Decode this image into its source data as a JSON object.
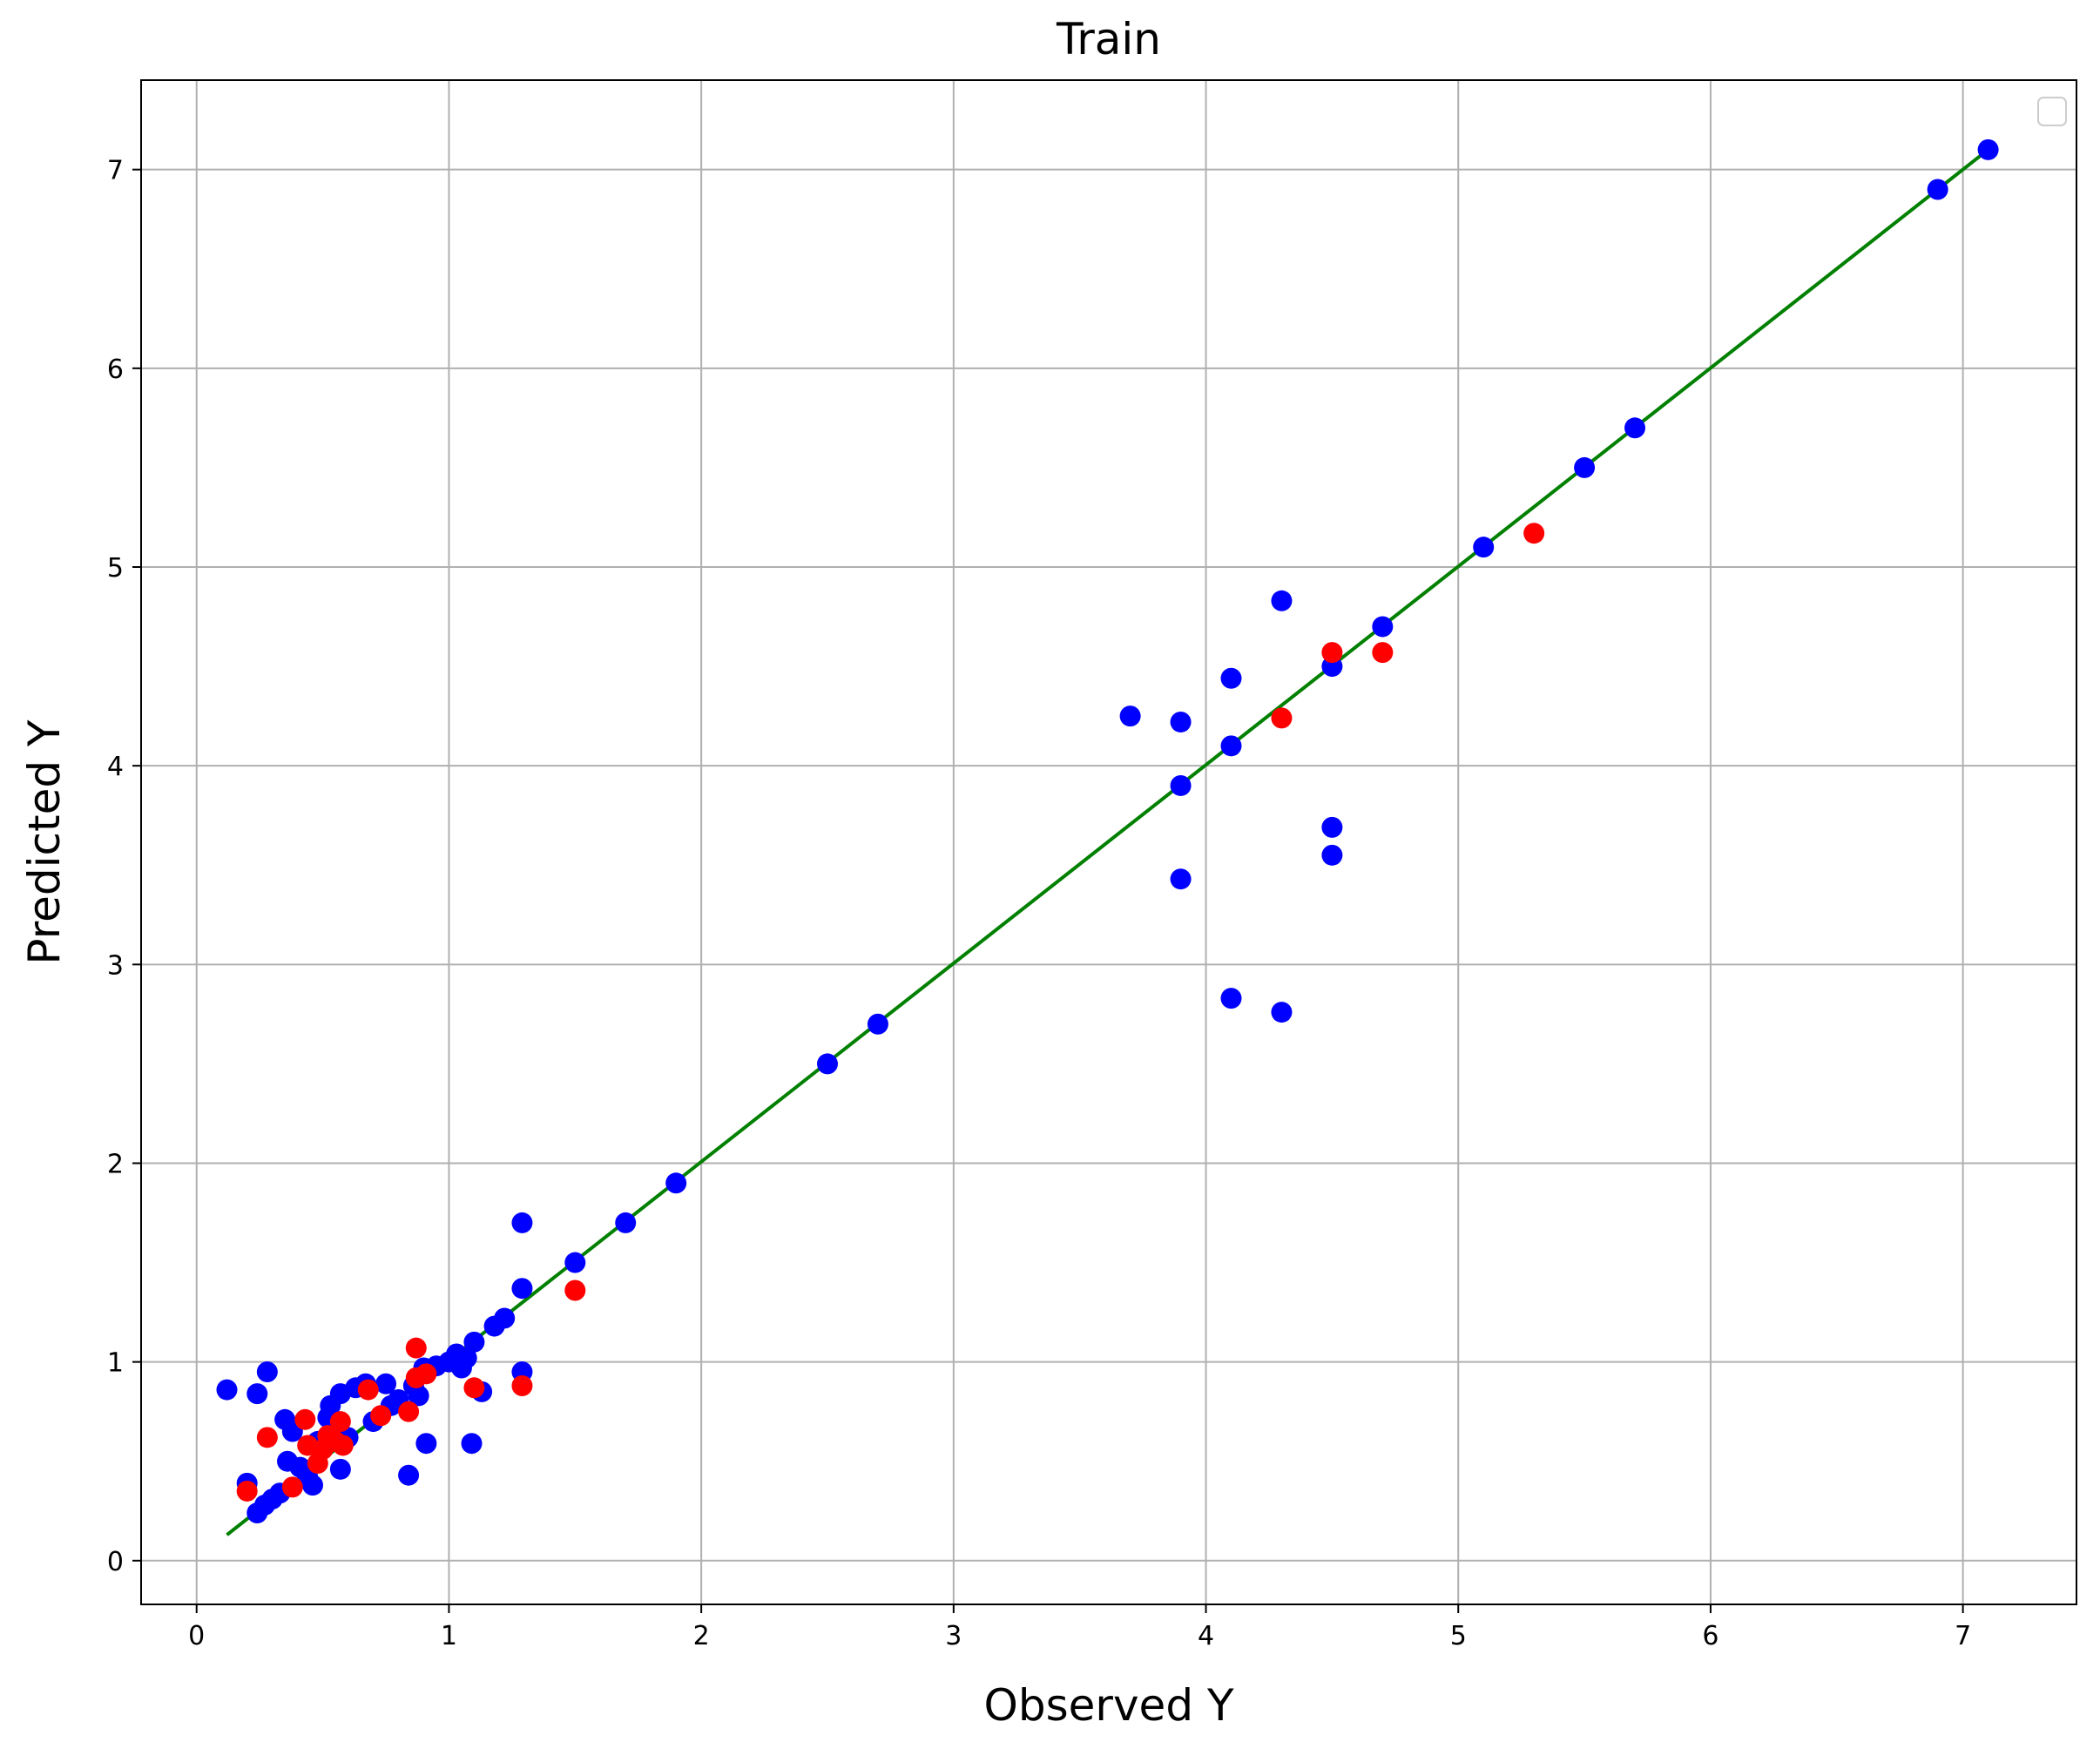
{
  "chart_data": {
    "type": "scatter",
    "title": "Train",
    "xlabel": "Observed Y",
    "ylabel": "Predicted Y",
    "xlim": [
      -0.22,
      7.45
    ],
    "ylim": [
      -0.22,
      7.45
    ],
    "xticks": [
      "0",
      "1",
      "2",
      "3",
      "4",
      "5",
      "6",
      "7"
    ],
    "yticks": [
      "0",
      "1",
      "2",
      "3",
      "4",
      "5",
      "6",
      "7"
    ],
    "grid": true,
    "legend": "top-right (empty)",
    "colors": {
      "series_blue": "#0000ff",
      "series_red": "#ff0000",
      "fit_line": "#008000",
      "grid": "#b0b0b0",
      "axes": "#000000",
      "legend_border": "#cccccc"
    },
    "line": {
      "x": [
        0.12,
        7.1
      ],
      "y": [
        0.13,
        7.1
      ]
    },
    "series": [
      {
        "color": "#0000ff",
        "points": [
          [
            0.12,
            0.86
          ],
          [
            0.24,
            0.84
          ],
          [
            0.28,
            0.95
          ],
          [
            0.35,
            0.71
          ],
          [
            0.36,
            0.5
          ],
          [
            0.38,
            0.65
          ],
          [
            0.41,
            0.47
          ],
          [
            0.44,
            0.42
          ],
          [
            0.46,
            0.38
          ],
          [
            0.48,
            0.6
          ],
          [
            0.52,
            0.72
          ],
          [
            0.53,
            0.78
          ],
          [
            0.55,
            0.64
          ],
          [
            0.57,
            0.84
          ],
          [
            0.57,
            0.46
          ],
          [
            0.6,
            0.62
          ],
          [
            0.63,
            0.87
          ],
          [
            0.67,
            0.89
          ],
          [
            0.7,
            0.7
          ],
          [
            0.75,
            0.89
          ],
          [
            0.77,
            0.78
          ],
          [
            0.8,
            0.81
          ],
          [
            0.84,
            0.43
          ],
          [
            0.86,
            0.88
          ],
          [
            0.88,
            0.83
          ],
          [
            0.9,
            0.97
          ],
          [
            0.91,
            0.59
          ],
          [
            0.95,
            0.98
          ],
          [
            1.0,
            1.0
          ],
          [
            1.03,
            1.04
          ],
          [
            1.05,
            0.97
          ],
          [
            1.07,
            1.02
          ],
          [
            1.09,
            0.59
          ],
          [
            1.1,
            1.1
          ],
          [
            1.13,
            0.85
          ],
          [
            1.18,
            1.18
          ],
          [
            1.22,
            1.22
          ],
          [
            1.29,
            1.7
          ],
          [
            1.29,
            1.37
          ],
          [
            1.29,
            0.95
          ],
          [
            0.2,
            0.39
          ],
          [
            0.24,
            0.24
          ],
          [
            0.27,
            0.28
          ],
          [
            0.3,
            0.31
          ],
          [
            0.33,
            0.34
          ],
          [
            1.5,
            1.5
          ],
          [
            1.7,
            1.7
          ],
          [
            1.9,
            1.9
          ],
          [
            2.5,
            2.5
          ],
          [
            2.7,
            2.7
          ],
          [
            3.7,
            4.25
          ],
          [
            3.9,
            4.22
          ],
          [
            3.9,
            3.9
          ],
          [
            3.9,
            3.43
          ],
          [
            4.1,
            4.44
          ],
          [
            4.1,
            4.1
          ],
          [
            4.1,
            2.83
          ],
          [
            4.3,
            4.83
          ],
          [
            4.3,
            2.76
          ],
          [
            4.5,
            4.5
          ],
          [
            4.5,
            3.69
          ],
          [
            4.5,
            3.55
          ],
          [
            4.7,
            4.7
          ],
          [
            5.1,
            5.1
          ],
          [
            5.5,
            5.5
          ],
          [
            5.7,
            5.7
          ],
          [
            6.9,
            6.9
          ],
          [
            7.1,
            7.1
          ]
        ]
      },
      {
        "color": "#ff0000",
        "points": [
          [
            0.2,
            0.35
          ],
          [
            0.28,
            0.62
          ],
          [
            0.38,
            0.37
          ],
          [
            0.43,
            0.71
          ],
          [
            0.44,
            0.58
          ],
          [
            0.48,
            0.49
          ],
          [
            0.5,
            0.56
          ],
          [
            0.52,
            0.63
          ],
          [
            0.55,
            0.6
          ],
          [
            0.57,
            0.7
          ],
          [
            0.58,
            0.58
          ],
          [
            0.68,
            0.86
          ],
          [
            0.73,
            0.73
          ],
          [
            0.84,
            0.75
          ],
          [
            0.87,
            1.07
          ],
          [
            0.87,
            0.92
          ],
          [
            0.91,
            0.94
          ],
          [
            1.1,
            0.87
          ],
          [
            1.29,
            0.88
          ],
          [
            1.5,
            1.36
          ],
          [
            4.3,
            4.24
          ],
          [
            4.5,
            4.57
          ],
          [
            4.7,
            4.57
          ],
          [
            5.3,
            5.17
          ]
        ]
      }
    ]
  }
}
